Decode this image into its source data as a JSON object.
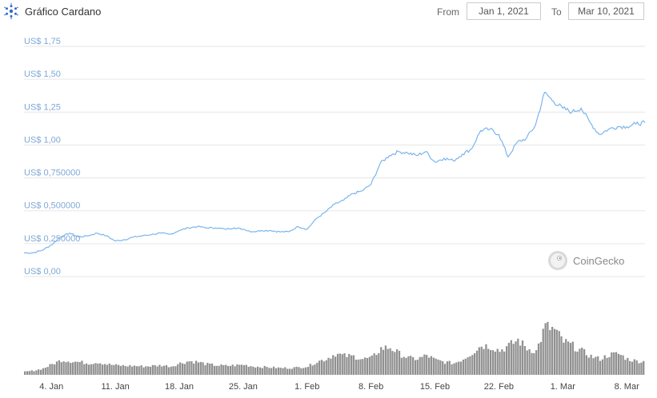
{
  "header": {
    "title": "Gráfico Cardano",
    "from_label": "From",
    "from_value": "Jan 1, 2021",
    "to_label": "To",
    "to_value": "Mar 10, 2021"
  },
  "credit": "CoinGecko",
  "colors": {
    "price_line": "#7cb5ec",
    "volume_bars": "#909090",
    "grid": "#e6e6e6",
    "axis_labels": "#7fa8d6"
  },
  "chart_data": {
    "type": "line",
    "title": "Gráfico Cardano",
    "x_range": [
      "2021-01-01",
      "2021-03-10"
    ],
    "ylim": [
      0,
      1.75
    ],
    "y_ticks": [
      "US$ 0,00",
      "US$ 0,250000",
      "US$ 0,500000",
      "US$ 0,750000",
      "US$ 1,00",
      "US$ 1,25",
      "US$ 1,50",
      "US$ 1,75"
    ],
    "y_tick_values": [
      0,
      0.25,
      0.5,
      0.75,
      1.0,
      1.25,
      1.5,
      1.75
    ],
    "x_ticks": [
      "4. Jan",
      "11. Jan",
      "18. Jan",
      "25. Jan",
      "1. Feb",
      "8. Feb",
      "15. Feb",
      "22. Feb",
      "1. Mar",
      "8. Mar"
    ],
    "x_tick_dates": [
      "2021-01-04",
      "2021-01-11",
      "2021-01-18",
      "2021-01-25",
      "2021-02-01",
      "2021-02-08",
      "2021-02-15",
      "2021-02-22",
      "2021-03-01",
      "2021-03-08"
    ],
    "grid": true,
    "legend": "none",
    "series": [
      {
        "x": [
          "2021-01-01",
          "2021-01-02",
          "2021-01-03",
          "2021-01-04",
          "2021-01-05",
          "2021-01-06",
          "2021-01-07",
          "2021-01-08",
          "2021-01-09",
          "2021-01-10",
          "2021-01-11",
          "2021-01-12",
          "2021-01-13",
          "2021-01-14",
          "2021-01-15",
          "2021-01-16",
          "2021-01-17",
          "2021-01-18",
          "2021-01-19",
          "2021-01-20",
          "2021-01-21",
          "2021-01-22",
          "2021-01-23",
          "2021-01-24",
          "2021-01-25",
          "2021-01-26",
          "2021-01-27",
          "2021-01-28",
          "2021-01-29",
          "2021-01-30",
          "2021-01-31",
          "2021-02-01",
          "2021-02-02",
          "2021-02-03",
          "2021-02-04",
          "2021-02-05",
          "2021-02-06",
          "2021-02-07",
          "2021-02-08",
          "2021-02-09",
          "2021-02-10",
          "2021-02-11",
          "2021-02-12",
          "2021-02-13",
          "2021-02-14",
          "2021-02-15",
          "2021-02-16",
          "2021-02-17",
          "2021-02-18",
          "2021-02-19",
          "2021-02-20",
          "2021-02-21",
          "2021-02-22",
          "2021-02-23",
          "2021-02-24",
          "2021-02-25",
          "2021-02-26",
          "2021-02-27",
          "2021-02-28",
          "2021-03-01",
          "2021-03-02",
          "2021-03-03",
          "2021-03-04",
          "2021-03-05",
          "2021-03-06",
          "2021-03-07",
          "2021-03-08",
          "2021-03-09",
          "2021-03-10"
        ],
        "values": [
          0.18,
          0.18,
          0.2,
          0.24,
          0.3,
          0.33,
          0.3,
          0.31,
          0.33,
          0.31,
          0.27,
          0.28,
          0.3,
          0.31,
          0.32,
          0.33,
          0.32,
          0.35,
          0.37,
          0.38,
          0.37,
          0.37,
          0.36,
          0.37,
          0.36,
          0.34,
          0.35,
          0.35,
          0.34,
          0.34,
          0.38,
          0.36,
          0.44,
          0.49,
          0.55,
          0.58,
          0.63,
          0.65,
          0.7,
          0.86,
          0.92,
          0.95,
          0.94,
          0.92,
          0.95,
          0.87,
          0.9,
          0.88,
          0.93,
          0.97,
          1.11,
          1.12,
          1.08,
          0.91,
          1.02,
          1.05,
          1.15,
          1.4,
          1.33,
          1.28,
          1.25,
          1.28,
          1.17,
          1.08,
          1.12,
          1.14,
          1.14,
          1.16,
          1.17
        ]
      },
      {
        "name": "Volume (relative)",
        "x": [
          "2021-01-01",
          "2021-01-02",
          "2021-01-03",
          "2021-01-04",
          "2021-01-05",
          "2021-01-06",
          "2021-01-07",
          "2021-01-08",
          "2021-01-09",
          "2021-01-10",
          "2021-01-11",
          "2021-01-12",
          "2021-01-13",
          "2021-01-14",
          "2021-01-15",
          "2021-01-16",
          "2021-01-17",
          "2021-01-18",
          "2021-01-19",
          "2021-01-20",
          "2021-01-21",
          "2021-01-22",
          "2021-01-23",
          "2021-01-24",
          "2021-01-25",
          "2021-01-26",
          "2021-01-27",
          "2021-01-28",
          "2021-01-29",
          "2021-01-30",
          "2021-01-31",
          "2021-02-01",
          "2021-02-02",
          "2021-02-03",
          "2021-02-04",
          "2021-02-05",
          "2021-02-06",
          "2021-02-07",
          "2021-02-08",
          "2021-02-09",
          "2021-02-10",
          "2021-02-11",
          "2021-02-12",
          "2021-02-13",
          "2021-02-14",
          "2021-02-15",
          "2021-02-16",
          "2021-02-17",
          "2021-02-18",
          "2021-02-19",
          "2021-02-20",
          "2021-02-21",
          "2021-02-22",
          "2021-02-23",
          "2021-02-24",
          "2021-02-25",
          "2021-02-26",
          "2021-02-27",
          "2021-02-28",
          "2021-03-01",
          "2021-03-02",
          "2021-03-03",
          "2021-03-04",
          "2021-03-05",
          "2021-03-06",
          "2021-03-07",
          "2021-03-08",
          "2021-03-09",
          "2021-03-10"
        ],
        "values": [
          0.06,
          0.08,
          0.12,
          0.2,
          0.28,
          0.26,
          0.24,
          0.22,
          0.24,
          0.2,
          0.18,
          0.17,
          0.17,
          0.16,
          0.17,
          0.18,
          0.16,
          0.22,
          0.26,
          0.24,
          0.2,
          0.18,
          0.17,
          0.18,
          0.19,
          0.16,
          0.15,
          0.14,
          0.13,
          0.13,
          0.14,
          0.16,
          0.25,
          0.3,
          0.4,
          0.36,
          0.35,
          0.3,
          0.32,
          0.5,
          0.52,
          0.4,
          0.32,
          0.3,
          0.37,
          0.28,
          0.24,
          0.22,
          0.3,
          0.42,
          0.56,
          0.54,
          0.46,
          0.55,
          0.66,
          0.5,
          0.45,
          0.92,
          0.85,
          0.63,
          0.55,
          0.45,
          0.35,
          0.3,
          0.38,
          0.4,
          0.3,
          0.26,
          0.25
        ]
      }
    ]
  }
}
